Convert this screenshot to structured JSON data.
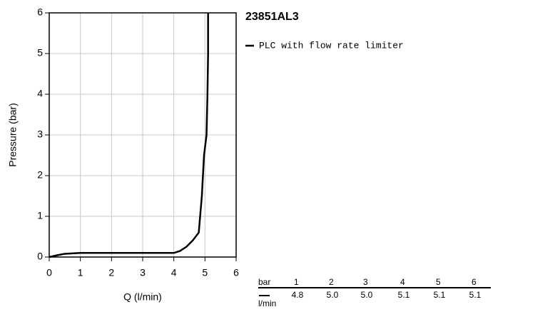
{
  "chart_data": {
    "type": "line",
    "title": "23851AL3",
    "xlabel": "Q (l/min)",
    "ylabel": "Pressure (bar)",
    "x": [
      0,
      0.3,
      0.5,
      1,
      2,
      3,
      4,
      4.2,
      4.4,
      4.6,
      4.8,
      4.9,
      4.97,
      5.05,
      5.08,
      5.1,
      5.1
    ],
    "series": [
      {
        "name": "PLC with flow rate limiter",
        "color": "#000000",
        "values": [
          0,
          0.05,
          0.08,
          0.1,
          0.1,
          0.1,
          0.1,
          0.15,
          0.25,
          0.4,
          0.6,
          1.5,
          2.5,
          3,
          4,
          5,
          6
        ]
      }
    ],
    "xlim": [
      0,
      6
    ],
    "ylim": [
      0,
      6
    ],
    "xticks": [
      0,
      1,
      2,
      3,
      4,
      5,
      6
    ],
    "yticks": [
      0,
      1,
      2,
      3,
      4,
      5,
      6
    ],
    "grid": true
  },
  "table": {
    "pressure_unit": "bar",
    "flow_unit": "l/min",
    "pressures": [
      1,
      2,
      3,
      4,
      5,
      6
    ],
    "flows": [
      "4.8",
      "5.0",
      "5.0",
      "5.1",
      "5.1",
      "5.1"
    ]
  }
}
